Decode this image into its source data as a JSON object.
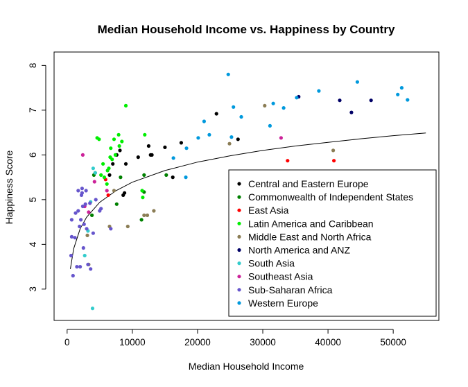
{
  "chart_data": {
    "type": "scatter",
    "title": "Median Household Income vs. Happiness by Country",
    "xlabel": "Median Household Income",
    "ylabel": "Happiness Score",
    "xlim": [
      -2000,
      57000
    ],
    "ylim": [
      2.3,
      8.3
    ],
    "x_ticks": [
      0,
      10000,
      20000,
      30000,
      40000,
      50000
    ],
    "y_ticks": [
      3,
      4,
      5,
      6,
      7,
      8
    ],
    "legend_position": "bottom-right",
    "grid": false,
    "fit_curve": {
      "type": "logarithmic",
      "x": [
        500,
        1000,
        2000,
        3000,
        5000,
        7500,
        10000,
        15000,
        20000,
        25000,
        30000,
        35000,
        40000,
        45000,
        50000,
        55000
      ],
      "y": [
        3.45,
        3.9,
        4.35,
        4.61,
        4.94,
        5.2,
        5.39,
        5.65,
        5.84,
        5.98,
        6.1,
        6.2,
        6.28,
        6.36,
        6.43,
        6.49
      ]
    },
    "series": [
      {
        "name": "Central and Eastern Europe",
        "color": "#000000",
        "points": [
          [
            6500,
            5.55
          ],
          [
            7000,
            5.8
          ],
          [
            7600,
            6.0
          ],
          [
            8100,
            6.1
          ],
          [
            8600,
            5.1
          ],
          [
            8800,
            5.15
          ],
          [
            9000,
            5.8
          ],
          [
            10900,
            5.95
          ],
          [
            12500,
            6.2
          ],
          [
            12800,
            6.0
          ],
          [
            13000,
            6.0
          ],
          [
            15000,
            6.17
          ],
          [
            16200,
            5.5
          ],
          [
            17500,
            6.27
          ],
          [
            22900,
            6.92
          ],
          [
            26200,
            6.35
          ]
        ]
      },
      {
        "name": "Commonwealth of Independent States",
        "color": "#008000",
        "points": [
          [
            3800,
            4.65
          ],
          [
            4100,
            5.55
          ],
          [
            4300,
            5.6
          ],
          [
            7600,
            4.9
          ],
          [
            8200,
            5.5
          ],
          [
            11400,
            4.55
          ],
          [
            11800,
            5.17
          ],
          [
            11800,
            5.55
          ],
          [
            15200,
            5.55
          ]
        ]
      },
      {
        "name": "East Asia",
        "color": "#ff0000",
        "points": [
          [
            5900,
            5.45
          ],
          [
            6300,
            5.1
          ],
          [
            33800,
            5.87
          ],
          [
            40900,
            5.87
          ]
        ]
      },
      {
        "name": "Latin America and Caribbean",
        "color": "#00ee00",
        "points": [
          [
            4600,
            6.38
          ],
          [
            4900,
            6.35
          ],
          [
            5200,
            5.55
          ],
          [
            5500,
            5.8
          ],
          [
            5700,
            5.5
          ],
          [
            6100,
            5.35
          ],
          [
            6200,
            5.65
          ],
          [
            6400,
            5.7
          ],
          [
            6600,
            5.95
          ],
          [
            6700,
            6.15
          ],
          [
            6900,
            5.9
          ],
          [
            7200,
            6.35
          ],
          [
            7400,
            6.0
          ],
          [
            7900,
            6.45
          ],
          [
            8000,
            6.2
          ],
          [
            8400,
            6.3
          ],
          [
            9000,
            7.1
          ],
          [
            11500,
            5.2
          ],
          [
            11600,
            5.05
          ],
          [
            11900,
            6.45
          ]
        ]
      },
      {
        "name": "Middle East and North Africa",
        "color": "#8b7d55",
        "points": [
          [
            3100,
            4.2
          ],
          [
            3300,
            3.55
          ],
          [
            6500,
            4.4
          ],
          [
            7200,
            5.2
          ],
          [
            9300,
            4.4
          ],
          [
            11800,
            4.65
          ],
          [
            12300,
            4.65
          ],
          [
            13300,
            4.75
          ],
          [
            24900,
            6.25
          ],
          [
            30300,
            7.1
          ],
          [
            40800,
            6.1
          ]
        ]
      },
      {
        "name": "North America and ANZ",
        "color": "#000066",
        "points": [
          [
            35500,
            7.3
          ],
          [
            41800,
            7.22
          ],
          [
            43600,
            6.95
          ],
          [
            46600,
            7.22
          ]
        ]
      },
      {
        "name": "South Asia",
        "color": "#33cccc",
        "points": [
          [
            2700,
            3.75
          ],
          [
            3200,
            4.3
          ],
          [
            3600,
            4.95
          ],
          [
            3900,
            2.57
          ],
          [
            4000,
            5.7
          ],
          [
            4300,
            5.6
          ]
        ]
      },
      {
        "name": "Southeast Asia",
        "color": "#cc2299",
        "points": [
          [
            2400,
            6.0
          ],
          [
            2700,
            4.85
          ],
          [
            3300,
            4.72
          ],
          [
            4200,
            5.4
          ],
          [
            6100,
            5.2
          ],
          [
            32800,
            6.38
          ]
        ]
      },
      {
        "name": "Sub-Saharan Africa",
        "color": "#6655cc",
        "points": [
          [
            600,
            3.75
          ],
          [
            700,
            4.55
          ],
          [
            700,
            4.17
          ],
          [
            900,
            3.3
          ],
          [
            1200,
            4.15
          ],
          [
            1300,
            4.7
          ],
          [
            1500,
            3.5
          ],
          [
            1700,
            4.75
          ],
          [
            1700,
            5.2
          ],
          [
            1900,
            4.4
          ],
          [
            2000,
            3.5
          ],
          [
            2100,
            4.55
          ],
          [
            2200,
            5.1
          ],
          [
            2300,
            5.15
          ],
          [
            2300,
            5.25
          ],
          [
            2400,
            4.85
          ],
          [
            2500,
            3.92
          ],
          [
            2600,
            4.45
          ],
          [
            2800,
            4.9
          ],
          [
            2900,
            5.2
          ],
          [
            3000,
            4.35
          ],
          [
            3200,
            3.55
          ],
          [
            3500,
            4.92
          ],
          [
            3600,
            3.45
          ],
          [
            4000,
            4.25
          ],
          [
            4400,
            5.0
          ],
          [
            5000,
            4.75
          ],
          [
            5200,
            4.8
          ],
          [
            6700,
            4.35
          ]
        ]
      },
      {
        "name": "Western Europe",
        "color": "#0099dd",
        "points": [
          [
            16300,
            5.93
          ],
          [
            18200,
            5.5
          ],
          [
            18300,
            6.15
          ],
          [
            20100,
            6.38
          ],
          [
            21000,
            6.75
          ],
          [
            21800,
            6.45
          ],
          [
            24700,
            7.8
          ],
          [
            25200,
            6.4
          ],
          [
            25500,
            7.07
          ],
          [
            26700,
            6.85
          ],
          [
            31100,
            6.65
          ],
          [
            31600,
            7.15
          ],
          [
            33200,
            7.05
          ],
          [
            35200,
            7.28
          ],
          [
            38600,
            7.43
          ],
          [
            44500,
            7.63
          ],
          [
            50700,
            7.35
          ],
          [
            51300,
            7.5
          ],
          [
            52200,
            7.23
          ]
        ]
      }
    ]
  }
}
